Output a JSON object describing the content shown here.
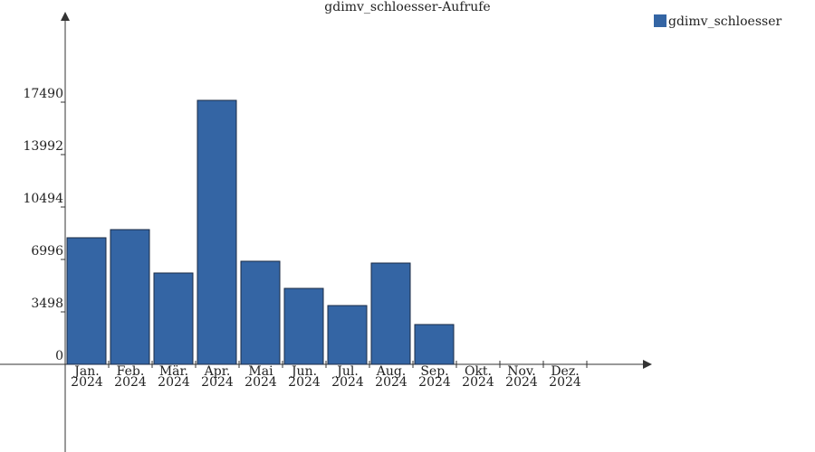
{
  "chart_data": {
    "type": "bar",
    "title": "gdimv_schloesser-Aufrufe",
    "categories": [
      [
        "Jan.",
        "2024"
      ],
      [
        "Feb.",
        "2024"
      ],
      [
        "Mär.",
        "2024"
      ],
      [
        "Apr.",
        "2024"
      ],
      [
        "Mai",
        "2024"
      ],
      [
        "Jun.",
        "2024"
      ],
      [
        "Jul.",
        "2024"
      ],
      [
        "Aug.",
        "2024"
      ],
      [
        "Sep.",
        "2024"
      ],
      [
        "Okt.",
        "2024"
      ],
      [
        "Nov.",
        "2024"
      ],
      [
        "Dez.",
        "2024"
      ]
    ],
    "series": [
      {
        "name": "gdimv_schloesser",
        "color": "#3465a4",
        "values": [
          8444,
          8987,
          6092,
          17611,
          6876,
          5066,
          3920,
          6755,
          2654,
          null,
          null,
          null
        ]
      }
    ],
    "ylim": [
      -5850,
      23400
    ],
    "yticks": [
      0,
      3498,
      6996,
      10494,
      13992,
      17490
    ],
    "legend": "top-right"
  }
}
